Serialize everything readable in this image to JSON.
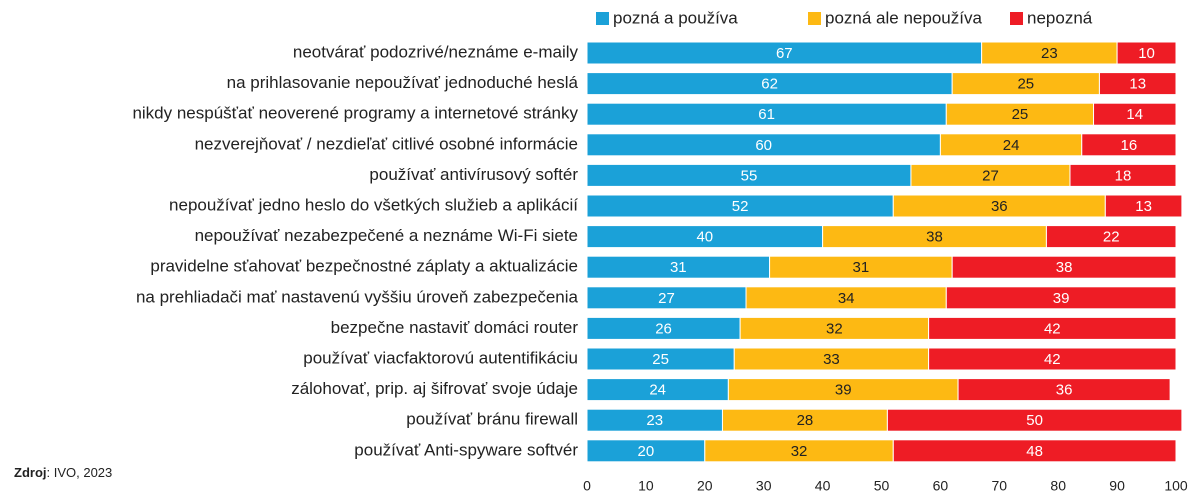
{
  "chart_data": {
    "type": "stacked-bar-horizontal",
    "categories": [
      "neotvárať podozrivé/neznáme e-maily",
      "na prihlasovanie nepoužívať jednoduché heslá",
      "nikdy nespúšťať neoverené programy a internetové stránky",
      "nezverejňovať / nezdieľať citlivé osobné informácie",
      "používať antivírusový softér",
      "nepoužívať jedno heslo do všetkých služieb a aplikácií",
      "nepoužívať nezabezpečené a neznáme Wi-Fi siete",
      "pravidelne sťahovať bezpečnostné záplaty a aktualizácie",
      "na prehliadači mať nastavenú vyššiu úroveň zabezpečenia",
      "bezpečne nastaviť domáci router",
      "používať viacfaktorovú autentifikáciu",
      "zálohovať, prip. aj šifrovať svoje údaje",
      "používať bránu firewall",
      "používať Anti-spyware softvér"
    ],
    "series": [
      {
        "name": "pozná a používa",
        "color": "#1ba1d8",
        "values": [
          67,
          62,
          61,
          60,
          55,
          52,
          40,
          31,
          27,
          26,
          25,
          24,
          23,
          20
        ]
      },
      {
        "name": "pozná ale nepoužíva",
        "color": "#fdb913",
        "values": [
          23,
          25,
          25,
          24,
          27,
          36,
          38,
          31,
          34,
          32,
          33,
          39,
          28,
          32
        ]
      },
      {
        "name": "nepozná",
        "color": "#ee1c25",
        "values": [
          10,
          13,
          14,
          16,
          18,
          13,
          22,
          38,
          39,
          42,
          42,
          36,
          50,
          48
        ]
      }
    ],
    "xlim": [
      0,
      100
    ],
    "xticks": [
      0,
      10,
      20,
      30,
      40,
      50,
      60,
      70,
      80,
      90,
      100
    ],
    "legend": "top",
    "source": {
      "label": "Zdroj",
      "text": ": IVO, 2023"
    }
  }
}
